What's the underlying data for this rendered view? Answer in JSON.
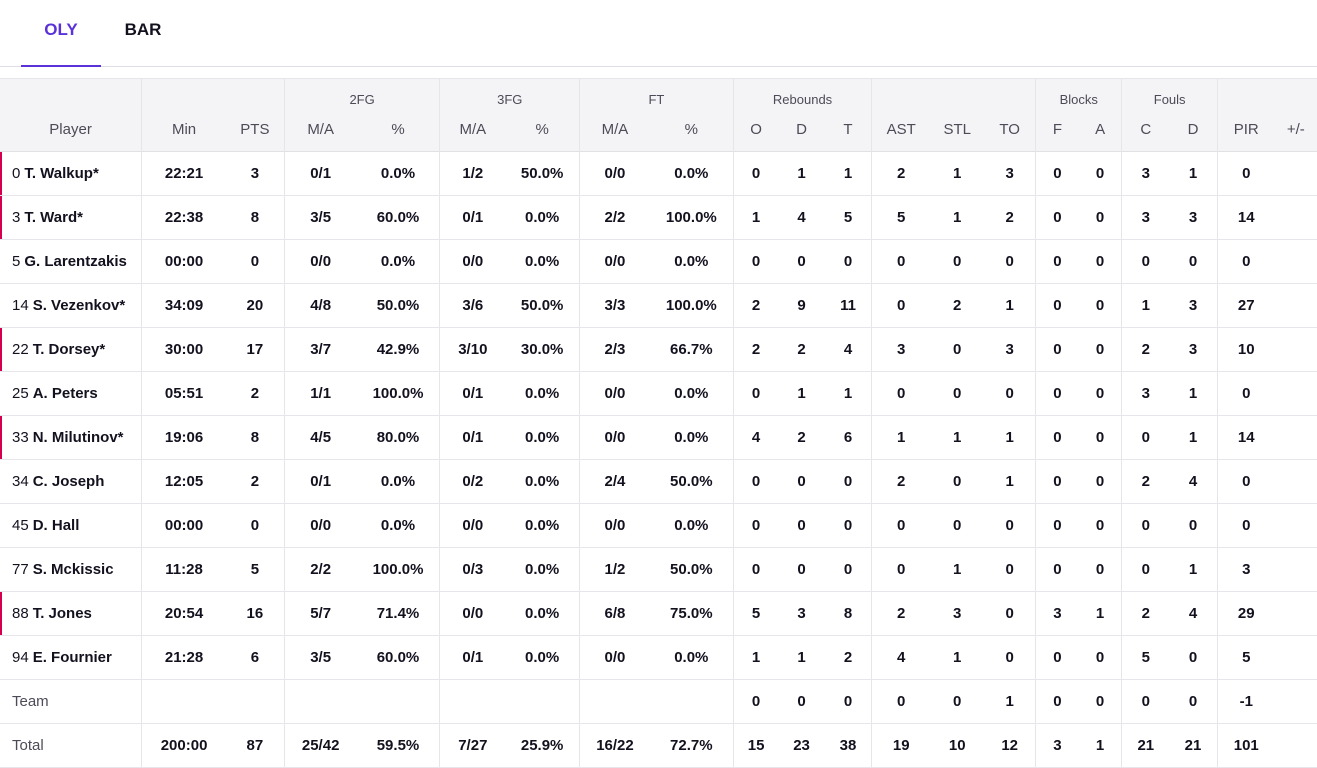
{
  "tabs": [
    "OLY",
    "BAR"
  ],
  "group_headers": {
    "fg2": "2FG",
    "fg3": "3FG",
    "ft": "FT",
    "reb": "Rebounds",
    "blk": "Blocks",
    "fouls": "Fouls"
  },
  "columns": [
    "Player",
    "Min",
    "PTS",
    "M/A",
    "%",
    "M/A",
    "%",
    "M/A",
    "%",
    "O",
    "D",
    "T",
    "AST",
    "STL",
    "TO",
    "F",
    "A",
    "C",
    "D",
    "PIR",
    "+/-"
  ],
  "rows": [
    {
      "num": "0",
      "name": "T. Walkup*",
      "starter": true,
      "vals": [
        "22:21",
        "3",
        "0/1",
        "0.0%",
        "1/2",
        "50.0%",
        "0/0",
        "0.0%",
        "0",
        "1",
        "1",
        "2",
        "1",
        "3",
        "0",
        "0",
        "3",
        "1",
        "0",
        ""
      ]
    },
    {
      "num": "3",
      "name": "T. Ward*",
      "starter": true,
      "vals": [
        "22:38",
        "8",
        "3/5",
        "60.0%",
        "0/1",
        "0.0%",
        "2/2",
        "100.0%",
        "1",
        "4",
        "5",
        "5",
        "1",
        "2",
        "0",
        "0",
        "3",
        "3",
        "14",
        ""
      ]
    },
    {
      "num": "5",
      "name": "G. Larentzakis",
      "starter": false,
      "vals": [
        "00:00",
        "0",
        "0/0",
        "0.0%",
        "0/0",
        "0.0%",
        "0/0",
        "0.0%",
        "0",
        "0",
        "0",
        "0",
        "0",
        "0",
        "0",
        "0",
        "0",
        "0",
        "0",
        ""
      ]
    },
    {
      "num": "14",
      "name": "S. Vezenkov*",
      "starter": false,
      "vals": [
        "34:09",
        "20",
        "4/8",
        "50.0%",
        "3/6",
        "50.0%",
        "3/3",
        "100.0%",
        "2",
        "9",
        "11",
        "0",
        "2",
        "1",
        "0",
        "0",
        "1",
        "3",
        "27",
        ""
      ]
    },
    {
      "num": "22",
      "name": "T. Dorsey*",
      "starter": true,
      "vals": [
        "30:00",
        "17",
        "3/7",
        "42.9%",
        "3/10",
        "30.0%",
        "2/3",
        "66.7%",
        "2",
        "2",
        "4",
        "3",
        "0",
        "3",
        "0",
        "0",
        "2",
        "3",
        "10",
        ""
      ]
    },
    {
      "num": "25",
      "name": "A. Peters",
      "starter": false,
      "vals": [
        "05:51",
        "2",
        "1/1",
        "100.0%",
        "0/1",
        "0.0%",
        "0/0",
        "0.0%",
        "0",
        "1",
        "1",
        "0",
        "0",
        "0",
        "0",
        "0",
        "3",
        "1",
        "0",
        ""
      ]
    },
    {
      "num": "33",
      "name": "N. Milutinov*",
      "starter": true,
      "vals": [
        "19:06",
        "8",
        "4/5",
        "80.0%",
        "0/1",
        "0.0%",
        "0/0",
        "0.0%",
        "4",
        "2",
        "6",
        "1",
        "1",
        "1",
        "0",
        "0",
        "0",
        "1",
        "14",
        ""
      ]
    },
    {
      "num": "34",
      "name": "C. Joseph",
      "starter": false,
      "vals": [
        "12:05",
        "2",
        "0/1",
        "0.0%",
        "0/2",
        "0.0%",
        "2/4",
        "50.0%",
        "0",
        "0",
        "0",
        "2",
        "0",
        "1",
        "0",
        "0",
        "2",
        "4",
        "0",
        ""
      ]
    },
    {
      "num": "45",
      "name": "D. Hall",
      "starter": false,
      "vals": [
        "00:00",
        "0",
        "0/0",
        "0.0%",
        "0/0",
        "0.0%",
        "0/0",
        "0.0%",
        "0",
        "0",
        "0",
        "0",
        "0",
        "0",
        "0",
        "0",
        "0",
        "0",
        "0",
        ""
      ]
    },
    {
      "num": "77",
      "name": "S. Mckissic",
      "starter": false,
      "vals": [
        "11:28",
        "5",
        "2/2",
        "100.0%",
        "0/3",
        "0.0%",
        "1/2",
        "50.0%",
        "0",
        "0",
        "0",
        "0",
        "1",
        "0",
        "0",
        "0",
        "0",
        "1",
        "3",
        ""
      ]
    },
    {
      "num": "88",
      "name": "T. Jones",
      "starter": true,
      "vals": [
        "20:54",
        "16",
        "5/7",
        "71.4%",
        "0/0",
        "0.0%",
        "6/8",
        "75.0%",
        "5",
        "3",
        "8",
        "2",
        "3",
        "0",
        "3",
        "1",
        "2",
        "4",
        "29",
        ""
      ]
    },
    {
      "num": "94",
      "name": "E. Fournier",
      "starter": false,
      "vals": [
        "21:28",
        "6",
        "3/5",
        "60.0%",
        "0/1",
        "0.0%",
        "0/0",
        "0.0%",
        "1",
        "1",
        "2",
        "4",
        "1",
        "0",
        "0",
        "0",
        "5",
        "0",
        "5",
        ""
      ]
    }
  ],
  "team_row": {
    "label": "Team",
    "vals": [
      "",
      "",
      "",
      "",
      "",
      "",
      "",
      "",
      "0",
      "0",
      "0",
      "0",
      "0",
      "1",
      "0",
      "0",
      "0",
      "0",
      "-1",
      ""
    ]
  },
  "total_row": {
    "label": "Total",
    "vals": [
      "200:00",
      "87",
      "25/42",
      "59.5%",
      "7/27",
      "25.9%",
      "16/22",
      "72.7%",
      "15",
      "23",
      "38",
      "19",
      "10",
      "12",
      "3",
      "1",
      "21",
      "21",
      "101",
      ""
    ]
  },
  "colors": {
    "accent": "#5a32d8",
    "starter_marker": "#d4004f",
    "header_bg": "#f4f4f6",
    "text": "#14111f"
  }
}
